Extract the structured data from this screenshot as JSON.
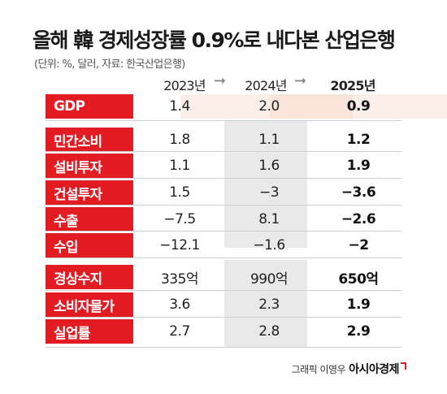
{
  "title": "올해 韓 경제성장률 0.9%로 내다본 산업은행",
  "source_note": "(단위: %, 달러, 자료: 한국산업은행)",
  "columns": [
    "2023년",
    "2024년",
    "2025년"
  ],
  "arrow_glyph": "➞",
  "rows": [
    {
      "label": "GDP",
      "values": [
        "1.4",
        "2.0",
        "0.9"
      ]
    },
    {
      "label": "민간소비",
      "values": [
        "1.8",
        "1.1",
        "1.2"
      ]
    },
    {
      "label": "설비투자",
      "values": [
        "1.1",
        "1.6",
        "1.9"
      ]
    },
    {
      "label": "건설투자",
      "values": [
        "1.5",
        "−3",
        "−3.6"
      ]
    },
    {
      "label": "수출",
      "values": [
        "−7.5",
        "8.1",
        "−2.6"
      ]
    },
    {
      "label": "수입",
      "values": [
        "−12.1",
        "−1.6",
        "−2"
      ]
    },
    {
      "label": "경상수지",
      "values": [
        "335억",
        "990억",
        "650억"
      ]
    },
    {
      "label": "소비자물가",
      "values": [
        "3.6",
        "2.3",
        "1.9"
      ]
    },
    {
      "label": "실업률",
      "values": [
        "2.7",
        "2.8",
        "2.9"
      ]
    }
  ],
  "credit": {
    "text": "그래픽 이영우",
    "brand": "아시아경제"
  },
  "colors": {
    "label_bg": "#e21c22",
    "gdp_row_bg": "#fbeee8",
    "highlight_col_bg": "#e9e9e9"
  }
}
